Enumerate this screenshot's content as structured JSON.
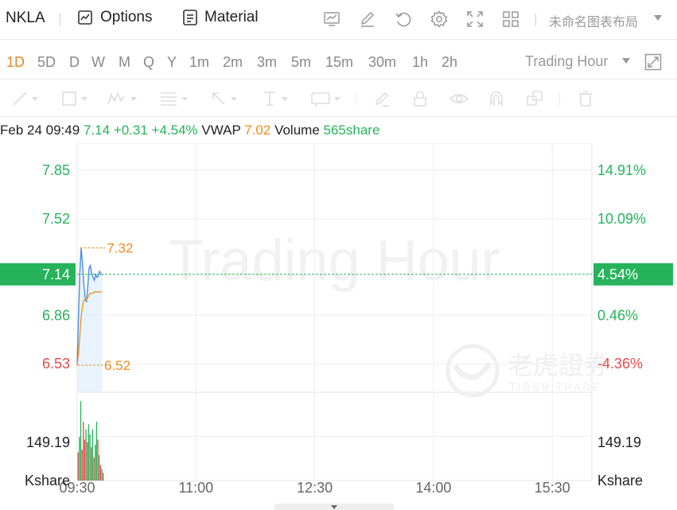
{
  "toolbar": {
    "symbol": "NKLA",
    "options_label": "Options",
    "material_label": "Material",
    "layout_name": "未命名图表布局",
    "icons": [
      "chart-icon",
      "edit-icon",
      "undo-icon",
      "settings-icon",
      "fullscreen-icon",
      "grid-layout-icon"
    ]
  },
  "periods": {
    "items": [
      "1D",
      "5D",
      "D",
      "W",
      "M",
      "Q",
      "Y",
      "1m",
      "2m",
      "3m",
      "5m",
      "15m",
      "30m",
      "1h",
      "2h"
    ],
    "active": "1D",
    "session_label": "Trading Hour"
  },
  "drawing_tools": [
    "line-tool-icon",
    "rectangle-tool-icon",
    "pattern-tool-icon",
    "fibonacci-tool-icon",
    "arrow-tool-icon",
    "text-tool-icon",
    "price-label-tool-icon",
    "pencil-icon",
    "lock-icon",
    "eye-icon",
    "magnet-icon",
    "layers-icon",
    "trash-icon"
  ],
  "quote": {
    "datetime": "Feb 24 09:49",
    "price": "7.14",
    "change": "+0.31",
    "change_pct": "+4.54%",
    "vwap_label": "VWAP",
    "vwap": "7.02",
    "volume_label": "Volume",
    "volume": "565share"
  },
  "chart_data": {
    "type": "line",
    "watermark": "Trading Hour",
    "brand_watermark": {
      "cn": "老虎證券",
      "en": "TIGER TRADE"
    },
    "x_ticks": [
      "09:30",
      "11:00",
      "12:30",
      "14:00",
      "15:30"
    ],
    "x_tick_minutes": [
      0,
      90,
      180,
      270,
      360
    ],
    "x_range_minutes": [
      0,
      390
    ],
    "ylim": [
      6.335,
      8.035
    ],
    "y_ticks_left": [
      {
        "value": 7.85,
        "label": "7.85",
        "color": "#27b35b"
      },
      {
        "value": 7.52,
        "label": "7.52",
        "color": "#27b35b"
      },
      {
        "value": 6.86,
        "label": "6.86",
        "color": "#27b35b"
      },
      {
        "value": 6.53,
        "label": "6.53",
        "color": "#e84a4a"
      }
    ],
    "y_ticks_right": [
      {
        "value": 7.85,
        "label": "14.91%",
        "color": "#27b35b"
      },
      {
        "value": 7.52,
        "label": "10.09%",
        "color": "#27b35b"
      },
      {
        "value": 6.86,
        "label": "0.46%",
        "color": "#27b35b"
      },
      {
        "value": 6.53,
        "label": "-4.36%",
        "color": "#e84a4a"
      }
    ],
    "current": {
      "value": 7.14,
      "label_left": "7.14",
      "label_right": "4.54%",
      "color": "#27b35b"
    },
    "high_marker": {
      "value": 7.32,
      "label": "7.32",
      "minute": 2
    },
    "low_marker": {
      "value": 6.52,
      "label": "6.52",
      "minute": 0
    },
    "price_series": {
      "minutes": [
        0,
        1,
        2,
        3,
        4,
        5,
        6,
        7,
        8,
        9,
        10,
        11,
        12,
        13,
        14,
        15,
        16,
        17,
        18,
        19
      ],
      "values": [
        6.52,
        6.85,
        7.15,
        7.32,
        7.22,
        7.08,
        6.98,
        6.95,
        7.05,
        7.18,
        7.2,
        7.15,
        7.12,
        7.1,
        7.14,
        7.12,
        7.13,
        7.16,
        7.14,
        7.14
      ],
      "color": "#4a90d9"
    },
    "vwap_series": {
      "minutes": [
        0,
        1,
        2,
        3,
        4,
        5,
        6,
        7,
        8,
        9,
        10,
        11,
        12,
        13,
        14,
        15,
        16,
        17,
        18,
        19
      ],
      "values": [
        6.52,
        6.6,
        6.72,
        6.85,
        6.92,
        6.96,
        6.97,
        6.97,
        6.98,
        7.0,
        7.01,
        7.01,
        7.01,
        7.02,
        7.02,
        7.02,
        7.02,
        7.02,
        7.02,
        7.02
      ],
      "color": "#f08c1a"
    },
    "volume": {
      "tick_label": "149.19",
      "unit": "Kshare",
      "tick_value": 149.19,
      "max": 320,
      "up_color": "#27b35b",
      "down_color": "#e84a4a",
      "bars": [
        {
          "minute": 0,
          "value": 110,
          "up": false
        },
        {
          "minute": 1,
          "value": 170,
          "up": true
        },
        {
          "minute": 2,
          "value": 310,
          "up": true
        },
        {
          "minute": 3,
          "value": 120,
          "up": false
        },
        {
          "minute": 4,
          "value": 230,
          "up": false
        },
        {
          "minute": 5,
          "value": 160,
          "up": false
        },
        {
          "minute": 6,
          "value": 200,
          "up": true
        },
        {
          "minute": 7,
          "value": 150,
          "up": false
        },
        {
          "minute": 8,
          "value": 220,
          "up": true
        },
        {
          "minute": 9,
          "value": 180,
          "up": true
        },
        {
          "minute": 10,
          "value": 130,
          "up": false
        },
        {
          "minute": 11,
          "value": 200,
          "up": true
        },
        {
          "minute": 12,
          "value": 90,
          "up": false
        },
        {
          "minute": 13,
          "value": 140,
          "up": true
        },
        {
          "minute": 14,
          "value": 230,
          "up": true
        },
        {
          "minute": 15,
          "value": 160,
          "up": false
        },
        {
          "minute": 16,
          "value": 100,
          "up": true
        },
        {
          "minute": 17,
          "value": 60,
          "up": false
        },
        {
          "minute": 18,
          "value": 45,
          "up": true
        },
        {
          "minute": 19,
          "value": 30,
          "up": false
        }
      ]
    }
  }
}
